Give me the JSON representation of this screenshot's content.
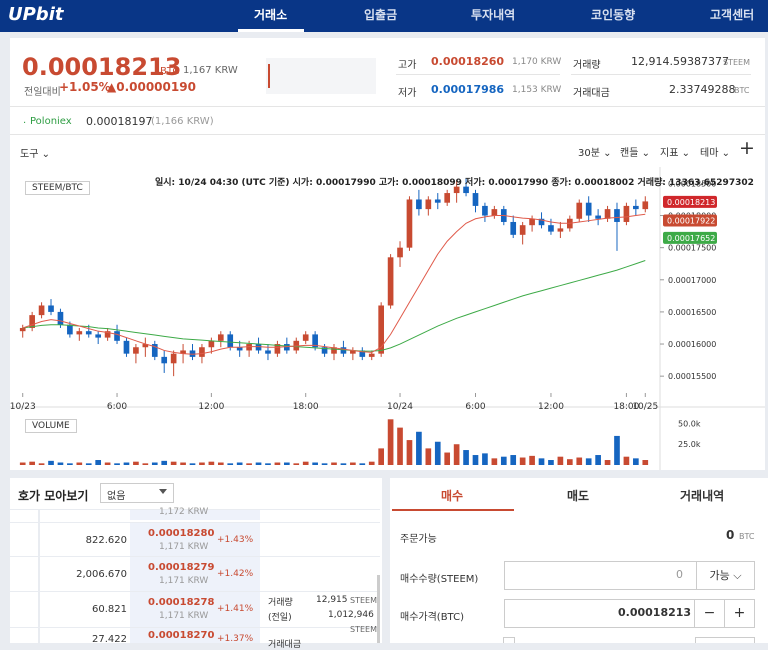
{
  "nav": {
    "logo": "UPbit",
    "items": [
      "거래소",
      "입출금",
      "투자내역",
      "코인동향",
      "고객센터"
    ]
  },
  "ticker": {
    "price": "0.00018213",
    "unit": "BTC",
    "krw": "1,167 KRW",
    "change_label": "전일대비",
    "change_pct": "+1.05%",
    "change_amt": "▲0.00000190",
    "high_label": "고가",
    "high": "0.00018260",
    "high_krw": "1,170 KRW",
    "low_label": "저가",
    "low": "0.00017986",
    "low_krw": "1,153 KRW",
    "volume_label": "거래량",
    "volume": "12,914.59387377",
    "volume_unit": "STEEM",
    "amount_label": "거래대금",
    "amount": "2.33749288",
    "amount_unit": "BTC"
  },
  "poloniex": {
    "dot": "·",
    "name": "Poloniex",
    "price": "0.00018197",
    "krw": "(1,166 KRW)"
  },
  "toolbar": {
    "tools": "도구",
    "interval": "30분",
    "type": "캔들",
    "indicator": "지표",
    "theme": "테마",
    "plus": "+"
  },
  "chart": {
    "ohlc": "일시: 10/24 04:30 (UTC 기준) 시가: 0.00017990 고가: 0.00018099 저가: 0.00017990 종가: 0.00018002 거래량: 13363.65297302",
    "pair_label": "STEEM/BTC",
    "volume_label": "VOLUME",
    "y_ticks": [
      "0.00018500",
      "0.00018000",
      "0.00017500",
      "0.00017000",
      "0.00016500",
      "0.00016000",
      "0.00015500"
    ],
    "x_ticks": [
      "10/23",
      "6:00",
      "12:00",
      "18:00",
      "10/24",
      "6:00",
      "12:00",
      "18:00",
      "10/25"
    ],
    "vol_ticks": [
      "50.0k",
      "25.0k"
    ],
    "price_tags": [
      {
        "value": "0.00018213",
        "color": "#d0272b"
      },
      {
        "value": "0.00017922",
        "color": "#c84a31"
      },
      {
        "value": "0.00017652",
        "color": "#3daa47"
      }
    ],
    "colors": {
      "up": "#c84a31",
      "down": "#1565c0",
      "ma_short": "#e05a4a",
      "ma_long": "#3daa47"
    }
  },
  "chart_data": {
    "type": "candlestick",
    "y_range": [
      0.000153,
      0.000186
    ],
    "candles": [
      [
        0.000162,
        0.000163,
        0.000161,
        0.0001625
      ],
      [
        0.0001625,
        0.000165,
        0.000162,
        0.0001645
      ],
      [
        0.0001645,
        0.0001665,
        0.000164,
        0.000166
      ],
      [
        0.000166,
        0.000167,
        0.0001645,
        0.000165
      ],
      [
        0.000165,
        0.0001655,
        0.0001625,
        0.000163
      ],
      [
        0.000163,
        0.0001635,
        0.000161,
        0.0001615
      ],
      [
        0.0001615,
        0.0001625,
        0.0001605,
        0.000162
      ],
      [
        0.000162,
        0.000163,
        0.000161,
        0.0001615
      ],
      [
        0.0001615,
        0.000162,
        0.00016,
        0.000161
      ],
      [
        0.000161,
        0.0001625,
        0.0001605,
        0.000162
      ],
      [
        0.000162,
        0.000163,
        0.00016,
        0.0001605
      ],
      [
        0.0001605,
        0.000161,
        0.000158,
        0.0001585
      ],
      [
        0.0001585,
        0.00016,
        0.000157,
        0.0001595
      ],
      [
        0.0001595,
        0.000161,
        0.000158,
        0.00016
      ],
      [
        0.00016,
        0.0001605,
        0.0001575,
        0.000158
      ],
      [
        0.000158,
        0.000159,
        0.0001555,
        0.000157
      ],
      [
        0.000157,
        0.000159,
        0.000155,
        0.0001585
      ],
      [
        0.0001585,
        0.00016,
        0.000157,
        0.000159
      ],
      [
        0.000159,
        0.00016,
        0.0001575,
        0.000158
      ],
      [
        0.000158,
        0.00016,
        0.000157,
        0.0001595
      ],
      [
        0.0001595,
        0.000161,
        0.0001585,
        0.0001605
      ],
      [
        0.0001605,
        0.000162,
        0.0001595,
        0.0001615
      ],
      [
        0.0001615,
        0.000162,
        0.000159,
        0.0001595
      ],
      [
        0.0001595,
        0.0001605,
        0.000158,
        0.000159
      ],
      [
        0.000159,
        0.0001605,
        0.000158,
        0.00016
      ],
      [
        0.00016,
        0.000161,
        0.0001585,
        0.000159
      ],
      [
        0.000159,
        0.00016,
        0.0001575,
        0.0001585
      ],
      [
        0.0001585,
        0.0001605,
        0.000158,
        0.00016
      ],
      [
        0.00016,
        0.000161,
        0.0001585,
        0.000159
      ],
      [
        0.000159,
        0.000161,
        0.0001585,
        0.0001605
      ],
      [
        0.0001605,
        0.000162,
        0.00016,
        0.0001615
      ],
      [
        0.0001615,
        0.000162,
        0.000159,
        0.0001595
      ],
      [
        0.0001595,
        0.00016,
        0.000158,
        0.0001585
      ],
      [
        0.0001585,
        0.00016,
        0.0001575,
        0.0001595
      ],
      [
        0.0001595,
        0.0001605,
        0.000158,
        0.0001585
      ],
      [
        0.0001585,
        0.0001595,
        0.0001575,
        0.000159
      ],
      [
        0.000159,
        0.0001595,
        0.0001575,
        0.000158
      ],
      [
        0.000158,
        0.000159,
        0.0001575,
        0.0001585
      ],
      [
        0.0001585,
        0.0001665,
        0.000158,
        0.000166
      ],
      [
        0.000166,
        0.000174,
        0.0001655,
        0.0001735
      ],
      [
        0.0001735,
        0.000176,
        0.000172,
        0.000175
      ],
      [
        0.000175,
        0.000183,
        0.0001745,
        0.0001825
      ],
      [
        0.0001825,
        0.000184,
        0.00018,
        0.000181
      ],
      [
        0.000181,
        0.000183,
        0.00018,
        0.0001825
      ],
      [
        0.0001825,
        0.0001835,
        0.000181,
        0.000182
      ],
      [
        0.000182,
        0.000184,
        0.0001815,
        0.0001835
      ],
      [
        0.0001835,
        0.0001855,
        0.000182,
        0.0001845
      ],
      [
        0.0001845,
        0.0001858,
        0.000183,
        0.0001835
      ],
      [
        0.0001835,
        0.000184,
        0.0001805,
        0.0001815
      ],
      [
        0.0001815,
        0.000182,
        0.000179,
        0.00018
      ],
      [
        0.00018,
        0.0001815,
        0.0001795,
        0.000181
      ],
      [
        0.000181,
        0.0001815,
        0.0001785,
        0.000179
      ],
      [
        0.000179,
        0.00018,
        0.0001765,
        0.000177
      ],
      [
        0.000177,
        0.000179,
        0.0001755,
        0.0001785
      ],
      [
        0.0001785,
        0.00018,
        0.0001775,
        0.0001795
      ],
      [
        0.0001795,
        0.0001805,
        0.000178,
        0.0001785
      ],
      [
        0.0001785,
        0.0001795,
        0.000177,
        0.0001775
      ],
      [
        0.0001775,
        0.000179,
        0.0001765,
        0.000178
      ],
      [
        0.000178,
        0.00018,
        0.0001775,
        0.0001795
      ],
      [
        0.0001795,
        0.0001825,
        0.000179,
        0.000182
      ],
      [
        0.000182,
        0.000183,
        0.000179,
        0.00018
      ],
      [
        0.00018,
        0.000181,
        0.0001785,
        0.0001795
      ],
      [
        0.0001795,
        0.0001815,
        0.000179,
        0.000181
      ],
      [
        0.000181,
        0.000182,
        0.0001745,
        0.000179
      ],
      [
        0.000179,
        0.000182,
        0.0001785,
        0.0001815
      ],
      [
        0.0001815,
        0.0001825,
        0.00018,
        0.000181
      ],
      [
        0.000181,
        0.000183,
        0.0001805,
        0.0001822
      ]
    ],
    "volumes": [
      3,
      4,
      2,
      5,
      3,
      2,
      3,
      2,
      6,
      3,
      2,
      3,
      4,
      2,
      3,
      5,
      4,
      3,
      2,
      3,
      4,
      3,
      2,
      3,
      2,
      3,
      2,
      3,
      3,
      2,
      4,
      3,
      2,
      3,
      2,
      3,
      2,
      4,
      20,
      55,
      45,
      30,
      40,
      20,
      28,
      15,
      25,
      18,
      12,
      14,
      8,
      10,
      12,
      9,
      11,
      8,
      6,
      10,
      7,
      9,
      8,
      12,
      6,
      35,
      10,
      8,
      6
    ],
    "ma_short": [
      0.0001625,
      0.000163,
      0.0001635,
      0.0001638,
      0.0001636,
      0.0001632,
      0.0001628,
      0.0001624,
      0.000162,
      0.0001618,
      0.0001615,
      0.000161,
      0.0001605,
      0.00016,
      0.0001596,
      0.000159,
      0.0001587,
      0.0001585,
      0.0001584,
      0.0001585,
      0.0001588,
      0.0001592,
      0.0001595,
      0.0001595,
      0.0001596,
      0.0001596,
      0.0001595,
      0.0001595,
      0.0001596,
      0.0001597,
      0.0001598,
      0.0001598,
      0.0001596,
      0.0001594,
      0.0001592,
      0.000159,
      0.0001588,
      0.0001587,
      0.0001595,
      0.0001615,
      0.000164,
      0.0001665,
      0.000169,
      0.0001715,
      0.000174,
      0.000176,
      0.0001775,
      0.0001788,
      0.0001795,
      0.0001798,
      0.00018,
      0.00018,
      0.0001798,
      0.0001796,
      0.0001795,
      0.0001793,
      0.000179,
      0.0001788,
      0.0001788,
      0.000179,
      0.0001792,
      0.0001794,
      0.0001796,
      0.0001797,
      0.0001798,
      0.00018,
      0.0001802
    ],
    "ma_long": [
      0.0001625,
      0.0001627,
      0.0001629,
      0.000163,
      0.000163,
      0.0001629,
      0.0001628,
      0.0001627,
      0.0001625,
      0.0001624,
      0.0001622,
      0.000162,
      0.0001618,
      0.0001616,
      0.0001614,
      0.0001612,
      0.000161,
      0.0001608,
      0.0001607,
      0.0001606,
      0.0001605,
      0.0001604,
      0.0001603,
      0.0001602,
      0.0001601,
      0.00016,
      0.0001599,
      0.0001598,
      0.0001597,
      0.0001596,
      0.0001595,
      0.0001594,
      0.0001593,
      0.0001592,
      0.0001591,
      0.000159,
      0.0001589,
      0.0001589,
      0.000159,
      0.0001594,
      0.00016,
      0.0001607,
      0.0001614,
      0.0001621,
      0.0001628,
      0.0001634,
      0.000164,
      0.0001645,
      0.000165,
      0.0001655,
      0.000166,
      0.0001665,
      0.000167,
      0.0001675,
      0.0001679,
      0.0001683,
      0.0001687,
      0.0001691,
      0.0001695,
      0.0001699,
      0.0001703,
      0.0001707,
      0.0001711,
      0.0001715,
      0.000172,
      0.0001725,
      0.000173
    ]
  },
  "orderbook": {
    "title": "호가 모아보기",
    "select": "없음",
    "rows": [
      {
        "qty": "",
        "price": "",
        "krw": "1,172 KRW",
        "pct": ""
      },
      {
        "qty": "822.620",
        "price": "0.00018280",
        "krw": "1,171 KRW",
        "pct": "+1.43%"
      },
      {
        "qty": "2,006.670",
        "price": "0.00018279",
        "krw": "1,171 KRW",
        "pct": "+1.42%"
      },
      {
        "qty": "60.821",
        "price": "0.00018278",
        "krw": "1,171 KRW",
        "pct": "+1.41%"
      },
      {
        "qty": "27.422",
        "price": "0.00018270",
        "krw": "",
        "pct": "+1.37%"
      }
    ],
    "side": {
      "vol_label": "거래량",
      "vol_label2": "(전일)",
      "vol": "12,915",
      "vol_unit": "STEEM",
      "vol_prev": "1,012,946",
      "amt_label": "거래대금",
      "amt_unit": "STEEM"
    }
  },
  "trade": {
    "tabs": [
      "매수",
      "매도",
      "거래내역"
    ],
    "available_label": "주문가능",
    "available": "0",
    "available_unit": "BTC",
    "qty_label": "매수수량(STEEM)",
    "qty": "0",
    "qty_btn": "가능",
    "price_label": "매수가격(BTC)",
    "price": "0.00018213",
    "minus": "−",
    "plus": "+"
  }
}
